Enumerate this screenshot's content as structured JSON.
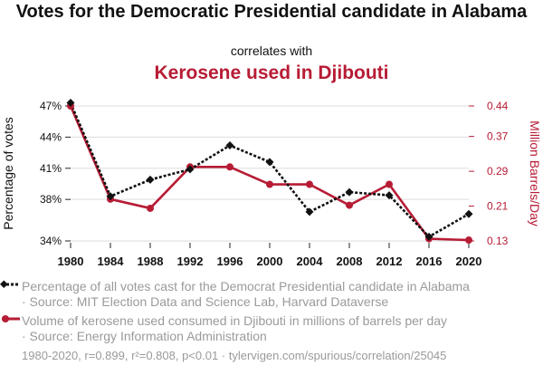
{
  "header": {
    "title": "Votes for the Democratic Presidential candidate in Alabama",
    "connector": "correlates with",
    "subtitle": "Kerosene used in Djibouti"
  },
  "colors": {
    "series1": "#111111",
    "series2": "#b71c35",
    "grid": "#dddddd",
    "muted": "#9a9a9a"
  },
  "chart_data": {
    "type": "line",
    "x": [
      1980,
      1984,
      1988,
      1992,
      1996,
      2000,
      2004,
      2008,
      2012,
      2016,
      2020
    ],
    "xlabel": "",
    "series": [
      {
        "name": "Percentage of votes",
        "axis": "left",
        "values": [
          47.3,
          38.3,
          39.9,
          40.9,
          43.2,
          41.6,
          36.8,
          38.7,
          38.4,
          34.4,
          36.6
        ],
        "tick_labels": [
          "47%",
          "44%",
          "41%",
          "38%",
          "34%"
        ],
        "tick_values": [
          47,
          44,
          41,
          38,
          34
        ]
      },
      {
        "name": "Million Barrels/Day",
        "axis": "right",
        "values": [
          0.44,
          0.226,
          0.205,
          0.3,
          0.3,
          0.26,
          0.26,
          0.212,
          0.26,
          0.135,
          0.132
        ],
        "tick_labels": [
          "0.44",
          "0.37",
          "0.29",
          "0.21",
          "0.13"
        ],
        "tick_values": [
          0.44,
          0.37,
          0.29,
          0.21,
          0.13
        ]
      }
    ],
    "ylabel_left": "Percentage of votes",
    "ylabel_right": "Million Barrels/Day",
    "ylim_left": [
      34,
      47
    ],
    "ylim_right": [
      0.13,
      0.44
    ]
  },
  "legend": {
    "item1_line1": "Percentage of all votes cast for the Democrat Presidential candidate in Alabama",
    "item1_line2": "· Source: MIT Election Data and Science Lab, Harvard Dataverse",
    "item2_line1": "Volume of kerosene used consumed in Djibouti in millions of barrels per day",
    "item2_line2": "· Source: Energy Information Administration"
  },
  "footer": "1980-2020, r=0.899, r²=0.808, p<0.01 · tylervigen.com/spurious/correlation/25045"
}
